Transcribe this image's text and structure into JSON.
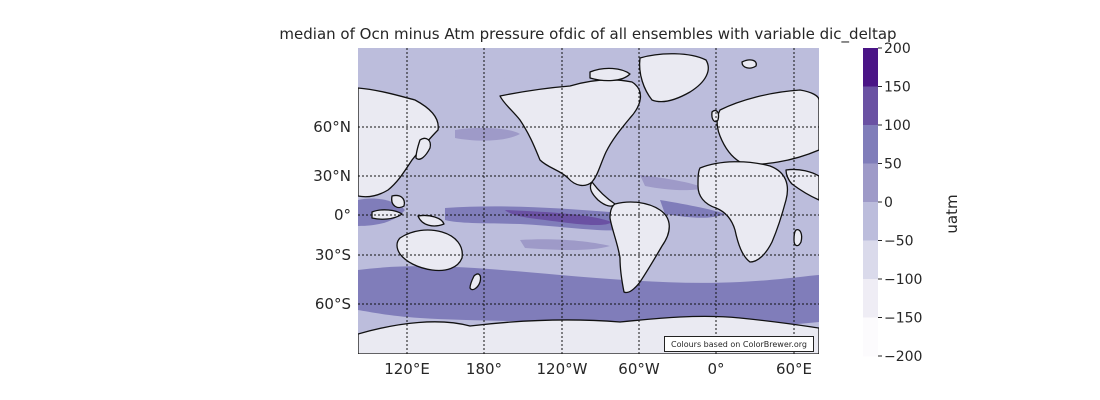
{
  "title": "median of Ocn minus Atm pressure ofdic of all ensembles with variable dic_deltap",
  "credit": "Colours based on ColorBrewer.org",
  "colorbar": {
    "label": "uatm",
    "ticks": [
      "200",
      "150",
      "100",
      "50",
      "0",
      "−50",
      "−100",
      "−150",
      "−200"
    ],
    "bin_colors": [
      "#4a1486",
      "#6a51a3",
      "#807dba",
      "#9e9ac8",
      "#bcbddc",
      "#dadaeb",
      "#efedf5",
      "#fcfbfd"
    ]
  },
  "axes": {
    "lat_labels": [
      "60°N",
      "30°N",
      "0°",
      "30°S",
      "60°S"
    ],
    "lon_labels": [
      "120°E",
      "180°",
      "120°W",
      "60°W",
      "0°",
      "60°E"
    ]
  },
  "colors": {
    "background": "#eaeaf2",
    "land": "#eaeaf2",
    "coast": "#111111"
  }
}
